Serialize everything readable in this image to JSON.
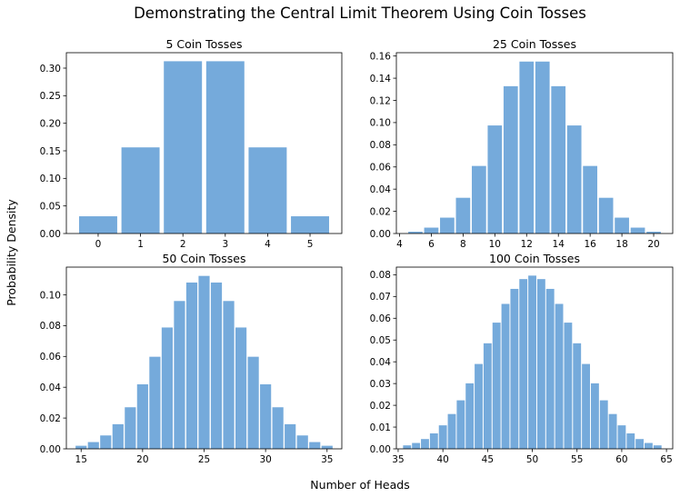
{
  "figure": {
    "title": "Demonstrating the Central Limit Theorem Using Coin Tosses",
    "xlabel": "Number of Heads",
    "ylabel": "Probability Density"
  },
  "colors": {
    "bar": "#75aadb",
    "axis": "#000000"
  },
  "chart_data": [
    {
      "type": "bar",
      "title": "5 Coin Tosses",
      "x": [
        0,
        1,
        2,
        3,
        4,
        5
      ],
      "values": [
        0.03125,
        0.15625,
        0.3125,
        0.3125,
        0.15625,
        0.03125
      ],
      "xlim": [
        -0.75,
        5.75
      ],
      "ylim": [
        0,
        0.328
      ],
      "xticks": [
        0,
        1,
        2,
        3,
        4,
        5
      ],
      "yticks": [
        0,
        0.05,
        0.1,
        0.15,
        0.2,
        0.25,
        0.3
      ],
      "yfmt": 2
    },
    {
      "type": "bar",
      "title": "25 Coin Tosses",
      "x": [
        5,
        6,
        7,
        8,
        9,
        10,
        11,
        12,
        13,
        14,
        15,
        16,
        17,
        18,
        19,
        20
      ],
      "values": [
        0.0016,
        0.0053,
        0.0143,
        0.0322,
        0.0609,
        0.0974,
        0.1328,
        0.155,
        0.155,
        0.1328,
        0.0974,
        0.0609,
        0.0322,
        0.0143,
        0.0053,
        0.0016
      ],
      "xlim": [
        3.8,
        21.2
      ],
      "ylim": [
        0,
        0.163
      ],
      "xticks": [
        4,
        6,
        8,
        10,
        12,
        14,
        16,
        18,
        20
      ],
      "yticks": [
        0,
        0.02,
        0.04,
        0.06,
        0.08,
        0.1,
        0.12,
        0.14,
        0.16
      ],
      "yfmt": 2
    },
    {
      "type": "bar",
      "title": "50 Coin Tosses",
      "x": [
        15,
        16,
        17,
        18,
        19,
        20,
        21,
        22,
        23,
        24,
        25,
        26,
        27,
        28,
        29,
        30,
        31,
        32,
        33,
        34,
        35
      ],
      "values": [
        0.002,
        0.0044,
        0.0087,
        0.016,
        0.027,
        0.0419,
        0.0598,
        0.0788,
        0.096,
        0.108,
        0.1123,
        0.108,
        0.096,
        0.0788,
        0.0598,
        0.0419,
        0.027,
        0.016,
        0.0087,
        0.0044,
        0.002
      ],
      "xlim": [
        13.8,
        36.2
      ],
      "ylim": [
        0,
        0.118
      ],
      "xticks": [
        15,
        20,
        25,
        30,
        35
      ],
      "yticks": [
        0,
        0.02,
        0.04,
        0.06,
        0.08,
        0.1
      ],
      "yfmt": 2
    },
    {
      "type": "bar",
      "title": "100 Coin Tosses",
      "x": [
        36,
        37,
        38,
        39,
        40,
        41,
        42,
        43,
        44,
        45,
        46,
        47,
        48,
        49,
        50,
        51,
        52,
        53,
        54,
        55,
        56,
        57,
        58,
        59,
        60,
        61,
        62,
        63,
        64
      ],
      "values": [
        0.0016,
        0.0027,
        0.0045,
        0.0071,
        0.0108,
        0.016,
        0.0223,
        0.0301,
        0.039,
        0.0485,
        0.058,
        0.0666,
        0.0735,
        0.078,
        0.0796,
        0.078,
        0.0735,
        0.0666,
        0.058,
        0.0485,
        0.039,
        0.0301,
        0.0223,
        0.016,
        0.0108,
        0.0071,
        0.0045,
        0.0027,
        0.0016
      ],
      "xlim": [
        34.8,
        65.7
      ],
      "ylim": [
        0,
        0.0835
      ],
      "xticks": [
        35,
        40,
        45,
        50,
        55,
        60,
        65
      ],
      "yticks": [
        0,
        0.01,
        0.02,
        0.03,
        0.04,
        0.05,
        0.06,
        0.07,
        0.08
      ],
      "yfmt": 2
    }
  ]
}
